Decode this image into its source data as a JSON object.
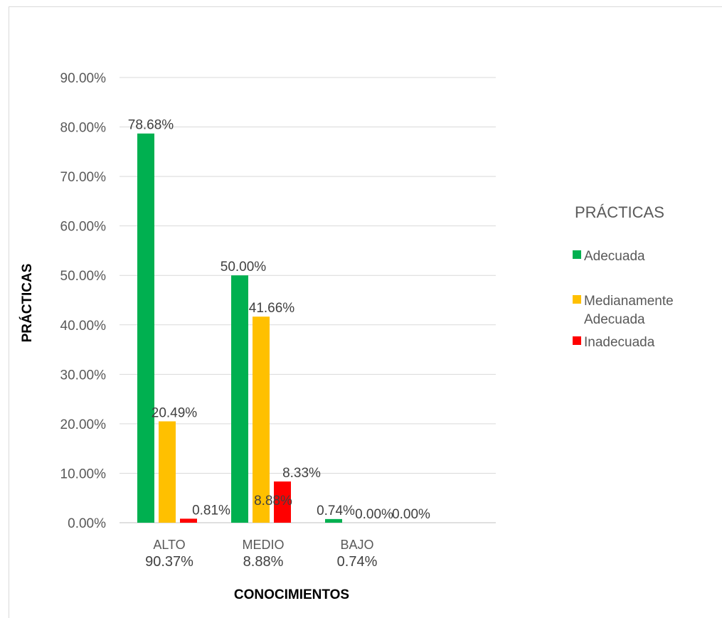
{
  "chart_data": {
    "type": "bar",
    "categories": [
      "ALTO",
      "MEDIO",
      "BAJO"
    ],
    "category_sublabels": [
      "90.37%",
      "8.88%",
      "0.74%"
    ],
    "series": [
      {
        "name": "Adecuada",
        "color": "#00b050",
        "values": [
          78.68,
          50.0,
          0.74
        ],
        "labels": [
          "78.68%",
          "50.00%",
          "0.74%"
        ]
      },
      {
        "name": "Medianamente Adecuada",
        "color": "#ffc000",
        "values": [
          20.49,
          41.66,
          0.0
        ],
        "labels": [
          "20.49%",
          "41.66%",
          "0.00%"
        ]
      },
      {
        "name": "Inadecuada",
        "color": "#ff0000",
        "values": [
          0.81,
          8.33,
          0.0
        ],
        "labels": [
          "0.81%",
          "8.33%",
          "0.00%"
        ]
      }
    ],
    "extra_annotations": [
      "8.88%"
    ],
    "xlabel": "CONOCIMIENTOS",
    "ylabel": "PRÁCTICAS",
    "ylim": [
      0,
      90
    ],
    "yticks": [
      "0.00%",
      "10.00%",
      "20.00%",
      "30.00%",
      "40.00%",
      "50.00%",
      "60.00%",
      "70.00%",
      "80.00%",
      "90.00%"
    ],
    "legend": {
      "title": "PRÁCTICAS",
      "items": [
        {
          "line1": "Adecuada",
          "line2": ""
        },
        {
          "line1": "Medianamente",
          "line2": "Adecuada"
        },
        {
          "line1": "Inadecuada",
          "line2": ""
        }
      ],
      "placement": "right"
    },
    "grid": true
  }
}
